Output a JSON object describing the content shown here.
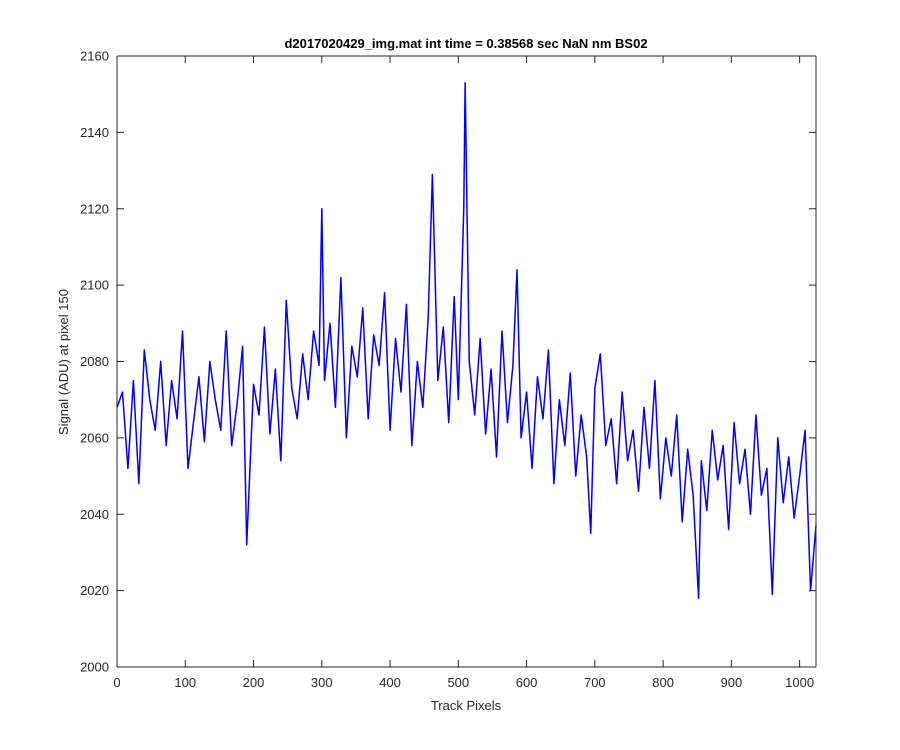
{
  "chart_data": {
    "type": "line",
    "title": "d2017020429_img.mat int time = 0.38568 sec  NaN nm BS02",
    "xlabel": "Track Pixels",
    "ylabel": "Signal (ADU) at pixel 150",
    "xlim": [
      0,
      1024
    ],
    "ylim": [
      2000,
      2160
    ],
    "xticks": [
      0,
      100,
      200,
      300,
      400,
      500,
      600,
      700,
      800,
      900,
      1000
    ],
    "yticks": [
      2000,
      2020,
      2040,
      2060,
      2080,
      2100,
      2120,
      2140,
      2160
    ],
    "xtick_labels": [
      "0",
      "100",
      "200",
      "300",
      "400",
      "500",
      "600",
      "700",
      "800",
      "900",
      "1000"
    ],
    "ytick_labels": [
      "2000",
      "2020",
      "2040",
      "2060",
      "2080",
      "2100",
      "2120",
      "2140",
      "2160"
    ],
    "grid": false,
    "legend": "none",
    "colors": {
      "line": "#0000ff",
      "axes": "#262626",
      "background": "#ffffff"
    },
    "series": [
      {
        "x": [
          0,
          8,
          16,
          24,
          32,
          40,
          48,
          56,
          64,
          72,
          80,
          88,
          96,
          104,
          112,
          120,
          128,
          136,
          144,
          152,
          160,
          168,
          176,
          184,
          190,
          200,
          208,
          216,
          224,
          232,
          240,
          248,
          256,
          264,
          272,
          280,
          288,
          296,
          300,
          304,
          312,
          320,
          328,
          336,
          344,
          352,
          360,
          368,
          376,
          384,
          392,
          400,
          408,
          416,
          424,
          432,
          440,
          448,
          456,
          462,
          470,
          478,
          486,
          494,
          500,
          508,
          510,
          516,
          524,
          532,
          540,
          548,
          556,
          564,
          572,
          580,
          586,
          592,
          600,
          608,
          616,
          624,
          632,
          640,
          648,
          656,
          664,
          672,
          680,
          688,
          694,
          700,
          708,
          716,
          724,
          732,
          740,
          748,
          756,
          764,
          772,
          780,
          788,
          796,
          804,
          812,
          820,
          828,
          836,
          844,
          852,
          856,
          864,
          872,
          880,
          888,
          896,
          904,
          912,
          920,
          928,
          936,
          944,
          952,
          960,
          968,
          976,
          984,
          992,
          1000,
          1008,
          1016,
          1024
        ],
        "values": [
          2068,
          2072,
          2052,
          2075,
          2048,
          2083,
          2070,
          2062,
          2080,
          2058,
          2075,
          2065,
          2088,
          2052,
          2064,
          2076,
          2059,
          2080,
          2070,
          2062,
          2088,
          2058,
          2069,
          2084,
          2032,
          2074,
          2066,
          2089,
          2061,
          2078,
          2054,
          2096,
          2073,
          2065,
          2082,
          2070,
          2088,
          2079,
          2120,
          2075,
          2090,
          2068,
          2102,
          2060,
          2084,
          2076,
          2094,
          2065,
          2087,
          2079,
          2098,
          2062,
          2086,
          2072,
          2095,
          2058,
          2080,
          2068,
          2092,
          2129,
          2075,
          2089,
          2064,
          2097,
          2070,
          2120,
          2153,
          2080,
          2066,
          2086,
          2061,
          2078,
          2055,
          2088,
          2064,
          2079,
          2104,
          2060,
          2072,
          2052,
          2076,
          2065,
          2083,
          2048,
          2070,
          2058,
          2077,
          2050,
          2066,
          2055,
          2035,
          2073,
          2082,
          2058,
          2065,
          2048,
          2072,
          2054,
          2062,
          2046,
          2068,
          2052,
          2075,
          2044,
          2060,
          2050,
          2066,
          2038,
          2057,
          2045,
          2018,
          2054,
          2041,
          2062,
          2049,
          2058,
          2036,
          2064,
          2048,
          2057,
          2040,
          2066,
          2045,
          2052,
          2019,
          2060,
          2043,
          2055,
          2039,
          2050,
          2062,
          2020,
          2037
        ]
      }
    ]
  }
}
